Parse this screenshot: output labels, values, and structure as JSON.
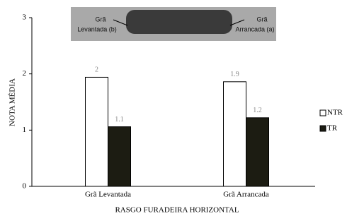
{
  "chart_data": {
    "type": "bar",
    "y_label": "NOTA MÉDIA",
    "x_label": "RASGO FURADEIRA HORIZONTAL",
    "annotations": [
      "Grã",
      "Levantada (b)",
      "Grã",
      "Arrancada (a)"
    ],
    "categories": [
      "Grã Levantada",
      "Grã Arrancada"
    ],
    "series": [
      {
        "name": "NTR",
        "color": "#ffffff",
        "values": [
          1.94,
          1.86
        ],
        "value_labels": [
          "2",
          "1.9"
        ]
      },
      {
        "name": "TR",
        "color": "#1c1c12",
        "values": [
          1.06,
          1.22
        ],
        "value_labels": [
          "1.1",
          "1.2"
        ]
      }
    ],
    "ylim": [
      0,
      3
    ],
    "yticks": [
      0,
      1,
      2,
      3
    ],
    "grid": false,
    "legend": "right"
  }
}
